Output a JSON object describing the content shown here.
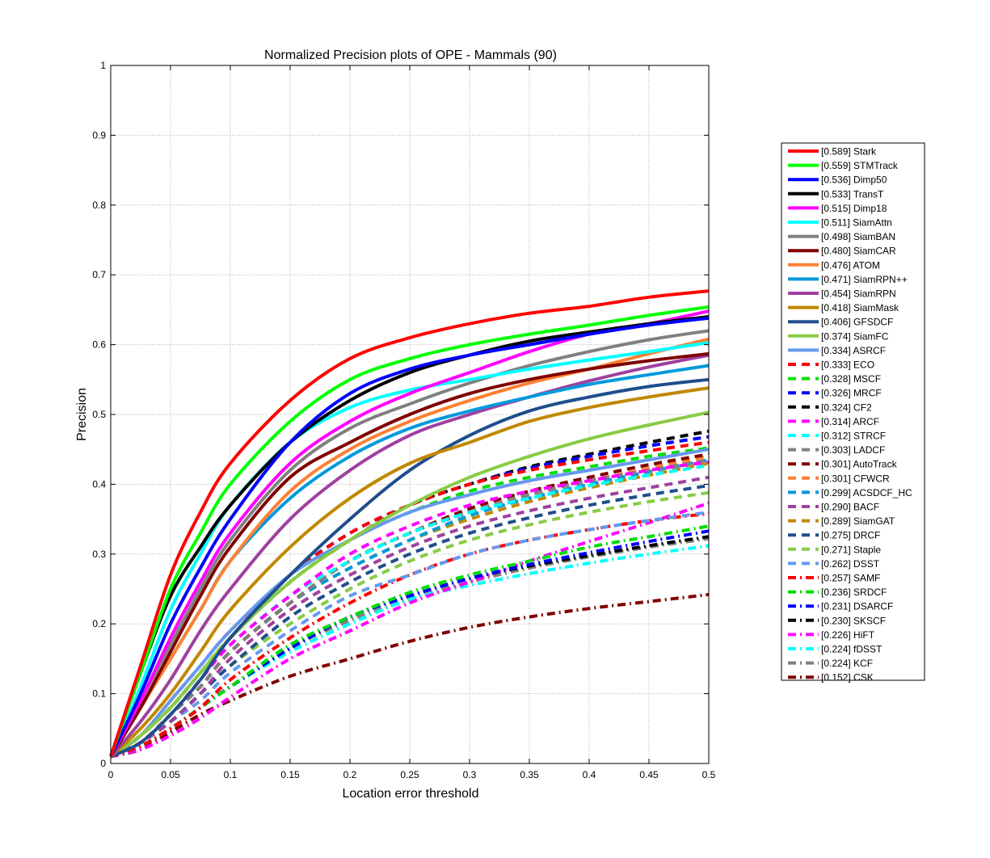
{
  "chart_data": {
    "type": "line",
    "title": "Normalized Precision plots of OPE - Mammals (90)",
    "xlabel": "Location error threshold",
    "ylabel": "Precision",
    "xlim": [
      0,
      0.5
    ],
    "ylim": [
      0,
      1
    ],
    "xticks": [
      "0",
      "0.05",
      "0.1",
      "0.15",
      "0.2",
      "0.25",
      "0.3",
      "0.35",
      "0.4",
      "0.45",
      "0.5"
    ],
    "yticks": [
      "0",
      "0.1",
      "0.2",
      "0.3",
      "0.4",
      "0.5",
      "0.6",
      "0.7",
      "0.8",
      "0.9",
      "1"
    ],
    "grid": true,
    "legend_position": "outside-right",
    "x": [
      0,
      0.025,
      0.05,
      0.075,
      0.1,
      0.15,
      0.2,
      0.25,
      0.3,
      0.35,
      0.4,
      0.45,
      0.5
    ],
    "series": [
      {
        "name": "[0.589] Stark",
        "color": "#ff0000",
        "dash": "solid",
        "values": [
          0.01,
          0.14,
          0.27,
          0.36,
          0.43,
          0.52,
          0.58,
          0.61,
          0.63,
          0.645,
          0.655,
          0.668,
          0.677
        ]
      },
      {
        "name": "[0.559] STMTrack",
        "color": "#00ff00",
        "dash": "solid",
        "values": [
          0.01,
          0.13,
          0.25,
          0.33,
          0.4,
          0.49,
          0.55,
          0.58,
          0.6,
          0.615,
          0.628,
          0.642,
          0.654
        ]
      },
      {
        "name": "[0.536] Dimp50",
        "color": "#0000ff",
        "dash": "solid",
        "values": [
          0.01,
          0.1,
          0.2,
          0.28,
          0.35,
          0.46,
          0.53,
          0.565,
          0.585,
          0.6,
          0.615,
          0.628,
          0.638
        ]
      },
      {
        "name": "[0.533] TransT",
        "color": "#000000",
        "dash": "solid",
        "values": [
          0.01,
          0.13,
          0.24,
          0.31,
          0.37,
          0.46,
          0.52,
          0.56,
          0.585,
          0.605,
          0.618,
          0.63,
          0.64
        ]
      },
      {
        "name": "[0.515] Dimp18",
        "color": "#ff00ff",
        "dash": "solid",
        "values": [
          0.01,
          0.09,
          0.18,
          0.26,
          0.33,
          0.43,
          0.49,
          0.53,
          0.56,
          0.59,
          0.615,
          0.63,
          0.648
        ]
      },
      {
        "name": "[0.511] SiamAttn",
        "color": "#00ffff",
        "dash": "solid",
        "values": [
          0.01,
          0.11,
          0.22,
          0.3,
          0.37,
          0.46,
          0.51,
          0.535,
          0.55,
          0.565,
          0.578,
          0.59,
          0.603
        ]
      },
      {
        "name": "[0.498] SiamBAN",
        "color": "#808080",
        "dash": "solid",
        "values": [
          0.01,
          0.09,
          0.17,
          0.25,
          0.32,
          0.42,
          0.48,
          0.515,
          0.545,
          0.57,
          0.59,
          0.607,
          0.62
        ]
      },
      {
        "name": "[0.480] SiamCAR",
        "color": "#800000",
        "dash": "solid",
        "values": [
          0.01,
          0.08,
          0.16,
          0.24,
          0.31,
          0.41,
          0.46,
          0.5,
          0.53,
          0.55,
          0.565,
          0.577,
          0.587
        ]
      },
      {
        "name": "[0.476] ATOM",
        "color": "#ff8033",
        "dash": "solid",
        "values": [
          0.01,
          0.08,
          0.15,
          0.22,
          0.29,
          0.39,
          0.45,
          0.49,
          0.52,
          0.545,
          0.565,
          0.587,
          0.608
        ]
      },
      {
        "name": "[0.471] SiamRPN++",
        "color": "#0099dd",
        "dash": "solid",
        "values": [
          0.01,
          0.08,
          0.15,
          0.22,
          0.29,
          0.38,
          0.44,
          0.48,
          0.505,
          0.525,
          0.543,
          0.557,
          0.57
        ]
      },
      {
        "name": "[0.454] SiamRPN",
        "color": "#a040a0",
        "dash": "solid",
        "values": [
          0.01,
          0.06,
          0.12,
          0.19,
          0.25,
          0.35,
          0.42,
          0.47,
          0.5,
          0.525,
          0.548,
          0.568,
          0.585
        ]
      },
      {
        "name": "[0.418] SiamMask",
        "color": "#c08800",
        "dash": "solid",
        "values": [
          0.01,
          0.05,
          0.1,
          0.16,
          0.22,
          0.31,
          0.38,
          0.43,
          0.46,
          0.49,
          0.51,
          0.525,
          0.538
        ]
      },
      {
        "name": "[0.406] GFSDCF",
        "color": "#1f4e8c",
        "dash": "solid",
        "values": [
          0.01,
          0.03,
          0.07,
          0.12,
          0.18,
          0.27,
          0.35,
          0.42,
          0.47,
          0.505,
          0.525,
          0.54,
          0.55
        ]
      },
      {
        "name": "[0.374] SiamFC",
        "color": "#88cc44",
        "dash": "solid",
        "values": [
          0.01,
          0.04,
          0.08,
          0.13,
          0.18,
          0.26,
          0.32,
          0.37,
          0.41,
          0.44,
          0.465,
          0.485,
          0.503
        ]
      },
      {
        "name": "[0.334] ASRCF",
        "color": "#6699ee",
        "dash": "solid",
        "values": [
          0.01,
          0.04,
          0.09,
          0.14,
          0.19,
          0.27,
          0.32,
          0.36,
          0.385,
          0.405,
          0.42,
          0.435,
          0.45
        ]
      },
      {
        "name": "[0.333] ECO",
        "color": "#ff0000",
        "dash": "dash",
        "values": [
          0.01,
          0.04,
          0.09,
          0.14,
          0.19,
          0.27,
          0.33,
          0.37,
          0.4,
          0.42,
          0.435,
          0.448,
          0.46
        ]
      },
      {
        "name": "[0.328] MSCF",
        "color": "#00dd00",
        "dash": "dash",
        "values": [
          0.01,
          0.04,
          0.08,
          0.13,
          0.18,
          0.26,
          0.32,
          0.36,
          0.39,
          0.41,
          0.425,
          0.44,
          0.452
        ]
      },
      {
        "name": "[0.326] MRCF",
        "color": "#0000ff",
        "dash": "dash",
        "values": [
          0.01,
          0.04,
          0.08,
          0.13,
          0.18,
          0.27,
          0.33,
          0.37,
          0.4,
          0.423,
          0.44,
          0.455,
          0.468
        ]
      },
      {
        "name": "[0.324] CF2",
        "color": "#000000",
        "dash": "dash",
        "values": [
          0.01,
          0.04,
          0.08,
          0.13,
          0.18,
          0.26,
          0.32,
          0.37,
          0.4,
          0.425,
          0.443,
          0.46,
          0.476
        ]
      },
      {
        "name": "[0.314] ARCF",
        "color": "#ff00ff",
        "dash": "dash",
        "values": [
          0.01,
          0.03,
          0.07,
          0.12,
          0.17,
          0.24,
          0.3,
          0.34,
          0.37,
          0.39,
          0.405,
          0.42,
          0.432
        ]
      },
      {
        "name": "[0.312] STRCF",
        "color": "#00ffff",
        "dash": "dash",
        "values": [
          0.01,
          0.03,
          0.07,
          0.12,
          0.17,
          0.24,
          0.29,
          0.33,
          0.36,
          0.38,
          0.398,
          0.413,
          0.427
        ]
      },
      {
        "name": "[0.303] LADCF",
        "color": "#808080",
        "dash": "dash",
        "values": [
          0.01,
          0.03,
          0.07,
          0.11,
          0.16,
          0.23,
          0.29,
          0.33,
          0.36,
          0.385,
          0.405,
          0.42,
          0.435
        ]
      },
      {
        "name": "[0.301] AutoTrack",
        "color": "#800000",
        "dash": "dash",
        "values": [
          0.01,
          0.03,
          0.07,
          0.11,
          0.16,
          0.23,
          0.29,
          0.33,
          0.365,
          0.39,
          0.41,
          0.428,
          0.443
        ]
      },
      {
        "name": "[0.301] CFWCR",
        "color": "#ff8033",
        "dash": "dash",
        "values": [
          0.01,
          0.03,
          0.07,
          0.11,
          0.16,
          0.23,
          0.29,
          0.33,
          0.36,
          0.385,
          0.405,
          0.423,
          0.44
        ]
      },
      {
        "name": "[0.299] ACSDCF_HC",
        "color": "#0099dd",
        "dash": "dash",
        "values": [
          0.01,
          0.03,
          0.07,
          0.11,
          0.16,
          0.23,
          0.28,
          0.32,
          0.355,
          0.38,
          0.4,
          0.418,
          0.435
        ]
      },
      {
        "name": "[0.290] BACF",
        "color": "#a040a0",
        "dash": "dash",
        "values": [
          0.01,
          0.03,
          0.06,
          0.1,
          0.15,
          0.22,
          0.27,
          0.31,
          0.34,
          0.362,
          0.38,
          0.395,
          0.41
        ]
      },
      {
        "name": "[0.289] SiamGAT",
        "color": "#c08800",
        "dash": "dash",
        "values": [
          0.01,
          0.03,
          0.07,
          0.11,
          0.16,
          0.23,
          0.28,
          0.32,
          0.35,
          0.375,
          0.395,
          0.413,
          0.43
        ]
      },
      {
        "name": "[0.275] DRCF",
        "color": "#1f4e8c",
        "dash": "dash",
        "values": [
          0.01,
          0.03,
          0.06,
          0.1,
          0.14,
          0.21,
          0.26,
          0.3,
          0.33,
          0.352,
          0.37,
          0.385,
          0.398
        ]
      },
      {
        "name": "[0.271] Staple",
        "color": "#88cc44",
        "dash": "dash",
        "values": [
          0.01,
          0.03,
          0.06,
          0.1,
          0.14,
          0.2,
          0.25,
          0.29,
          0.32,
          0.342,
          0.36,
          0.375,
          0.388
        ]
      },
      {
        "name": "[0.262] DSST",
        "color": "#6699ee",
        "dash": "dash",
        "values": [
          0.01,
          0.03,
          0.06,
          0.09,
          0.13,
          0.19,
          0.24,
          0.27,
          0.3,
          0.32,
          0.335,
          0.348,
          0.36
        ]
      },
      {
        "name": "[0.257] SAMF",
        "color": "#ff0000",
        "dash": "dashdot",
        "values": [
          0.01,
          0.025,
          0.05,
          0.08,
          0.12,
          0.18,
          0.23,
          0.27,
          0.3,
          0.32,
          0.335,
          0.348,
          0.358
        ]
      },
      {
        "name": "[0.236] SRDCF",
        "color": "#00dd00",
        "dash": "dashdot",
        "values": [
          0.01,
          0.025,
          0.05,
          0.08,
          0.11,
          0.17,
          0.21,
          0.245,
          0.27,
          0.29,
          0.31,
          0.325,
          0.34
        ]
      },
      {
        "name": "[0.231] DSARCF",
        "color": "#0000ff",
        "dash": "dashdot",
        "values": [
          0.01,
          0.025,
          0.05,
          0.08,
          0.11,
          0.165,
          0.21,
          0.24,
          0.265,
          0.285,
          0.302,
          0.318,
          0.333
        ]
      },
      {
        "name": "[0.230] SKSCF",
        "color": "#000000",
        "dash": "dashdot",
        "values": [
          0.01,
          0.025,
          0.05,
          0.08,
          0.11,
          0.165,
          0.21,
          0.24,
          0.265,
          0.283,
          0.298,
          0.312,
          0.325
        ]
      },
      {
        "name": "[0.226] HiFT",
        "color": "#ff00ff",
        "dash": "dashdot",
        "values": [
          0.01,
          0.02,
          0.04,
          0.065,
          0.095,
          0.15,
          0.19,
          0.23,
          0.26,
          0.29,
          0.318,
          0.345,
          0.373
        ]
      },
      {
        "name": "[0.224] fDSST",
        "color": "#00ffff",
        "dash": "dashdot",
        "values": [
          0.01,
          0.025,
          0.05,
          0.08,
          0.11,
          0.16,
          0.2,
          0.235,
          0.255,
          0.272,
          0.287,
          0.3,
          0.312
        ]
      },
      {
        "name": "[0.224] KCF",
        "color": "#808080",
        "dash": "dashdot",
        "values": [
          0.01,
          0.025,
          0.05,
          0.08,
          0.11,
          0.165,
          0.205,
          0.235,
          0.26,
          0.28,
          0.296,
          0.31,
          0.322
        ]
      },
      {
        "name": "[0.152] CSK",
        "color": "#800000",
        "dash": "dashdot",
        "values": [
          0.01,
          0.02,
          0.045,
          0.07,
          0.09,
          0.125,
          0.15,
          0.175,
          0.195,
          0.21,
          0.222,
          0.232,
          0.242
        ]
      }
    ]
  }
}
